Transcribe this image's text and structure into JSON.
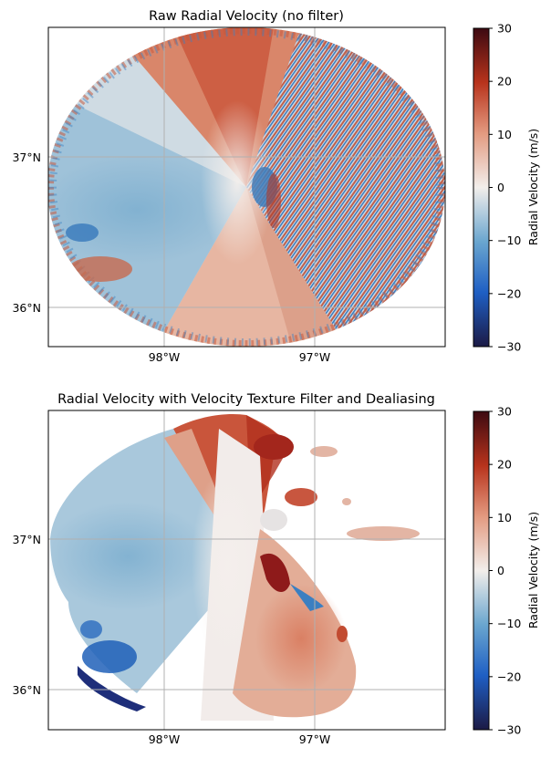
{
  "chart_data": [
    {
      "type": "heatmap",
      "title": "Raw Radial Velocity (no filter)",
      "x_ticks": [
        "98°W",
        "97°W"
      ],
      "y_ticks": [
        "37°N",
        "36°N"
      ],
      "grid": true,
      "colorbar": {
        "label": "Radial Velocity (m/s)",
        "range": [
          -30,
          30
        ],
        "ticks": [
          "30",
          "20",
          "10",
          "0",
          "−10",
          "−20",
          "−30"
        ],
        "colors": [
          "#1b1a45",
          "#1f5fc4",
          "#6aa6cf",
          "#f2eeeb",
          "#e39a80",
          "#b8331c",
          "#3d0a11"
        ]
      }
    },
    {
      "type": "heatmap",
      "title": "Radial Velocity with Velocity Texture Filter and Dealiasing",
      "x_ticks": [
        "98°W",
        "97°W"
      ],
      "y_ticks": [
        "37°N",
        "36°N"
      ],
      "grid": true,
      "colorbar": {
        "label": "Radial Velocity (m/s)",
        "range": [
          -30,
          30
        ],
        "ticks": [
          "30",
          "20",
          "10",
          "0",
          "−10",
          "−20",
          "−30"
        ],
        "colors": [
          "#1b1a45",
          "#1f5fc4",
          "#6aa6cf",
          "#f2eeeb",
          "#e39a80",
          "#b8331c",
          "#3d0a11"
        ]
      }
    }
  ]
}
